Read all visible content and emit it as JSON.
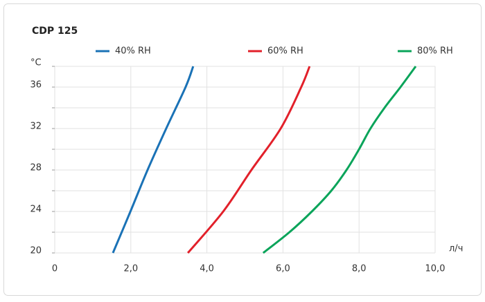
{
  "chart_data": {
    "type": "line",
    "title": "CDP 125",
    "y_label": "°C",
    "x_label": "л/ч",
    "xlim": [
      0,
      10
    ],
    "xticks": [
      0,
      {
        "value": 2,
        "label": "2,0"
      },
      {
        "value": 4,
        "label": "4,0"
      },
      {
        "value": 6,
        "label": "6,0"
      },
      {
        "value": 8,
        "label": "8,0"
      },
      {
        "value": 10,
        "label": "10,0"
      }
    ],
    "ylim": [
      20,
      38
    ],
    "yticks": [
      20,
      24,
      28,
      32,
      36
    ],
    "y_minor_ticks": [
      22,
      26,
      30,
      34,
      38
    ],
    "grid": true,
    "series": [
      {
        "name": "40% RH",
        "color": "#1a72b6",
        "x": [
          1.53,
          1.99,
          2.44,
          2.93,
          3.44,
          3.64
        ],
        "values": [
          20,
          24,
          28,
          32,
          36,
          38
        ]
      },
      {
        "name": "60% RH",
        "color": "#e2202a",
        "x": [
          3.5,
          4.43,
          5.17,
          5.94,
          6.48,
          6.7
        ],
        "values": [
          20,
          24,
          28,
          32,
          36,
          38
        ]
      },
      {
        "name": "80% RH",
        "color": "#0aa45a",
        "x": [
          5.48,
          6.17,
          6.76,
          7.27,
          7.67,
          8.0,
          8.3,
          8.67,
          9.09,
          9.49
        ],
        "values": [
          20,
          22,
          24,
          26,
          28,
          30,
          32,
          34,
          36,
          38
        ]
      }
    ]
  }
}
